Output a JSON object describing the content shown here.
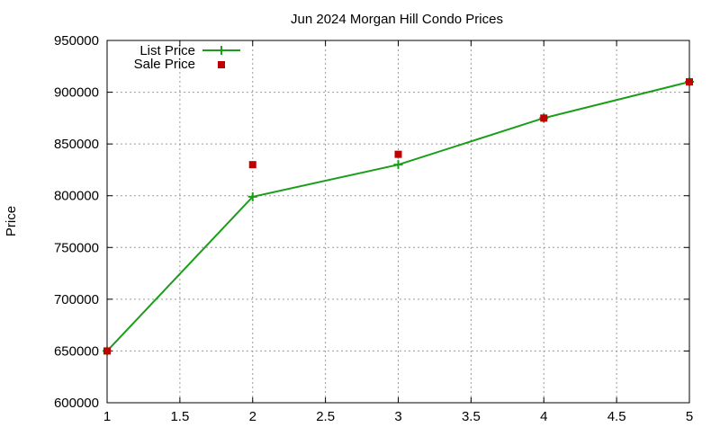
{
  "chart_data": {
    "type": "line",
    "title": "Jun 2024 Morgan Hill Condo Prices",
    "xlabel": "",
    "ylabel": "Price",
    "xlim": [
      1,
      5
    ],
    "ylim": [
      600000,
      950000
    ],
    "x_ticks": [
      "1",
      "1.5",
      "2",
      "2.5",
      "3",
      "3.5",
      "4",
      "4.5",
      "5"
    ],
    "y_ticks": [
      "600000",
      "650000",
      "700000",
      "750000",
      "800000",
      "850000",
      "900000",
      "950000"
    ],
    "grid": true,
    "legend_position": "top-left",
    "series": [
      {
        "name": "List Price",
        "style": "line+cross",
        "color": "#1a9e1a",
        "x": [
          1,
          2,
          3,
          4,
          5
        ],
        "values": [
          650000,
          799000,
          830000,
          875000,
          910000
        ]
      },
      {
        "name": "Sale Price",
        "style": "square-markers",
        "color": "#c00000",
        "x": [
          1,
          2,
          3,
          4,
          5
        ],
        "values": [
          650000,
          830000,
          840000,
          875000,
          910000
        ]
      }
    ]
  }
}
